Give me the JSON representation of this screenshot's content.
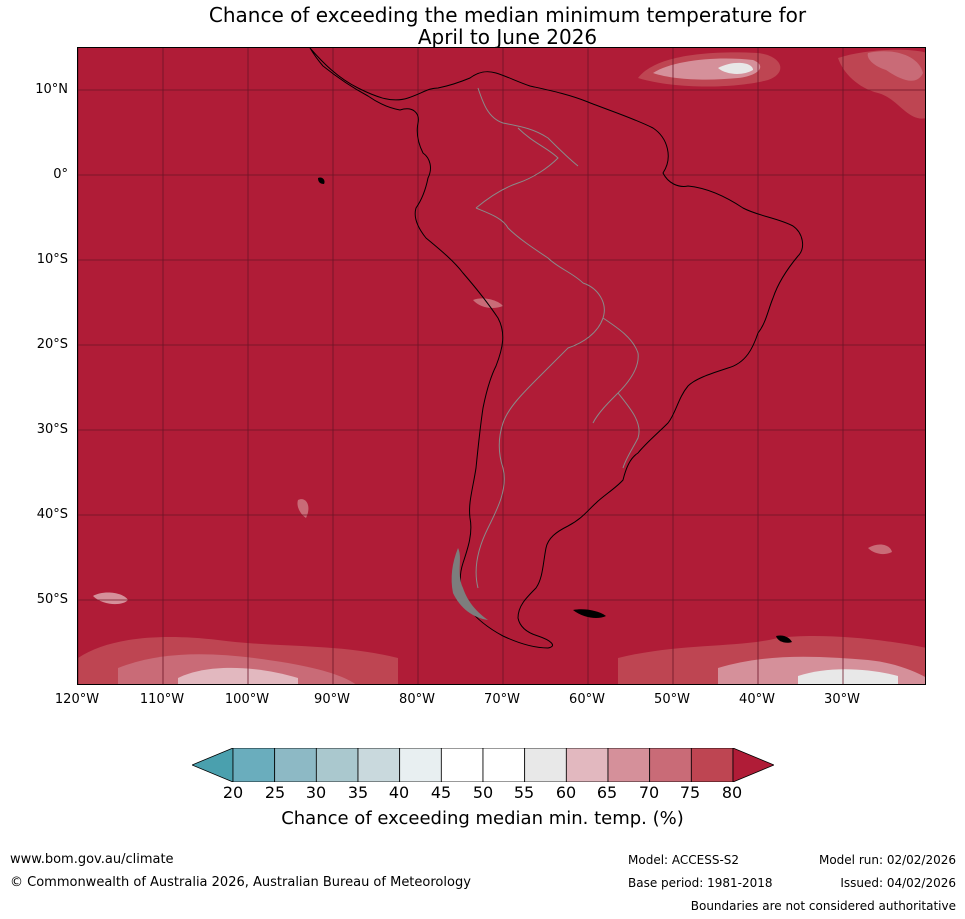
{
  "title": {
    "line1": "Chance of exceeding the median minimum temperature for",
    "line2": "April to June 2026"
  },
  "map": {
    "region": "South America",
    "dominant_category": "80+",
    "dominant_color": "#b01c37",
    "lat_labels": [
      "10°N",
      "0°",
      "10°S",
      "20°S",
      "30°S",
      "40°S",
      "50°S"
    ],
    "lon_labels": [
      "120°W",
      "110°W",
      "100°W",
      "90°W",
      "80°W",
      "70°W",
      "60°W",
      "50°W",
      "40°W",
      "30°W"
    ]
  },
  "legend": {
    "ticks": [
      "20",
      "25",
      "30",
      "35",
      "40",
      "45",
      "50",
      "55",
      "60",
      "65",
      "70",
      "75",
      "80"
    ],
    "colors": [
      "#4aa0ae",
      "#6aadbd",
      "#8db9c5",
      "#aac8ce",
      "#c9d9dd",
      "#e8eff1",
      "#ffffff",
      "#ffffff",
      "#e8e8e8",
      "#e2b8bf",
      "#d5909a",
      "#c96b77",
      "#be4552",
      "#b01c37"
    ],
    "label": "Chance of exceeding median min. temp. (%)"
  },
  "footer": {
    "website": "www.bom.gov.au/climate",
    "copyright": "© Commonwealth of Australia 2026, Australian Bureau of Meteorology",
    "model": "Model: ACCESS-S2",
    "base_period": "Base period: 1981-2018",
    "model_run": "Model run: 02/02/2026",
    "issued": "Issued: 04/02/2026",
    "disclaimer": "Boundaries are not considered authoritative"
  }
}
